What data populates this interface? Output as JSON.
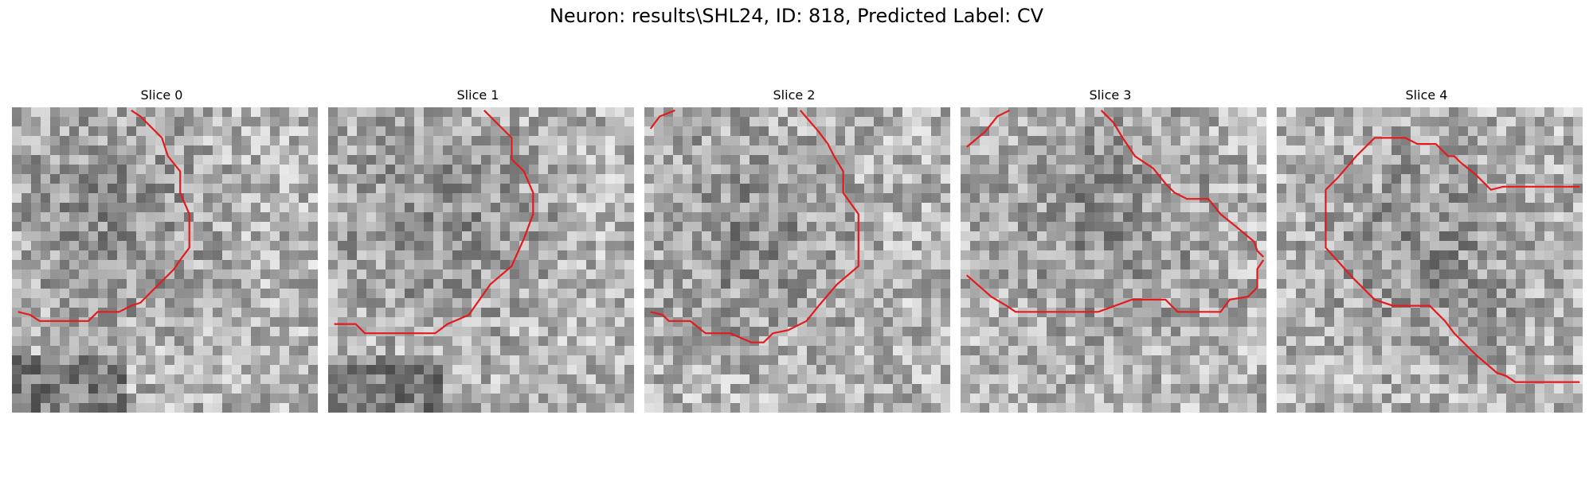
{
  "figure": {
    "title": "Neuron: results\\SHL24, ID: 818, Predicted Label: CV",
    "contour_color": "#e41a1c"
  },
  "panels": [
    {
      "label": "Slice 0",
      "contour": [
        [
          [
            0.02,
            0.67
          ],
          [
            0.06,
            0.68
          ],
          [
            0.09,
            0.7
          ],
          [
            0.18,
            0.7
          ],
          [
            0.25,
            0.7
          ],
          [
            0.28,
            0.67
          ],
          [
            0.35,
            0.67
          ],
          [
            0.39,
            0.65
          ],
          [
            0.42,
            0.64
          ],
          [
            0.46,
            0.6
          ],
          [
            0.53,
            0.53
          ],
          [
            0.55,
            0.5
          ],
          [
            0.58,
            0.46
          ],
          [
            0.58,
            0.35
          ],
          [
            0.55,
            0.28
          ],
          [
            0.55,
            0.21
          ],
          [
            0.51,
            0.16
          ],
          [
            0.49,
            0.1
          ],
          [
            0.42,
            0.03
          ],
          [
            0.39,
            0.01
          ]
        ]
      ]
    },
    {
      "label": "Slice 1",
      "contour": [
        [
          [
            0.02,
            0.71
          ],
          [
            0.09,
            0.71
          ],
          [
            0.12,
            0.74
          ],
          [
            0.23,
            0.74
          ],
          [
            0.35,
            0.74
          ],
          [
            0.39,
            0.71
          ],
          [
            0.46,
            0.68
          ],
          [
            0.53,
            0.58
          ],
          [
            0.6,
            0.52
          ],
          [
            0.64,
            0.43
          ],
          [
            0.67,
            0.35
          ],
          [
            0.67,
            0.28
          ],
          [
            0.64,
            0.21
          ],
          [
            0.6,
            0.17
          ],
          [
            0.6,
            0.1
          ],
          [
            0.54,
            0.04
          ],
          [
            0.51,
            0.01
          ]
        ]
      ]
    },
    {
      "label": "Slice 2",
      "contour": [
        [
          [
            0.02,
            0.67
          ],
          [
            0.06,
            0.68
          ],
          [
            0.08,
            0.7
          ],
          [
            0.15,
            0.7
          ],
          [
            0.2,
            0.74
          ],
          [
            0.28,
            0.74
          ],
          [
            0.35,
            0.77
          ],
          [
            0.39,
            0.77
          ],
          [
            0.42,
            0.74
          ],
          [
            0.47,
            0.73
          ],
          [
            0.53,
            0.7
          ],
          [
            0.57,
            0.65
          ],
          [
            0.63,
            0.58
          ],
          [
            0.7,
            0.52
          ],
          [
            0.7,
            0.45
          ],
          [
            0.7,
            0.35
          ],
          [
            0.65,
            0.28
          ],
          [
            0.65,
            0.21
          ],
          [
            0.62,
            0.16
          ],
          [
            0.6,
            0.12
          ],
          [
            0.57,
            0.08
          ],
          [
            0.51,
            0.01
          ]
        ],
        [
          [
            0.02,
            0.07
          ],
          [
            0.05,
            0.03
          ],
          [
            0.1,
            0.01
          ]
        ]
      ]
    },
    {
      "label": "Slice 3",
      "contour": [
        [
          [
            0.02,
            0.55
          ],
          [
            0.1,
            0.62
          ],
          [
            0.15,
            0.65
          ],
          [
            0.18,
            0.67
          ],
          [
            0.3,
            0.67
          ],
          [
            0.45,
            0.67
          ],
          [
            0.56,
            0.63
          ],
          [
            0.67,
            0.63
          ],
          [
            0.71,
            0.67
          ],
          [
            0.85,
            0.67
          ],
          [
            0.88,
            0.63
          ],
          [
            0.94,
            0.62
          ],
          [
            0.97,
            0.59
          ],
          [
            0.97,
            0.53
          ],
          [
            0.99,
            0.5
          ]
        ],
        [
          [
            0.99,
            0.49
          ],
          [
            0.97,
            0.47
          ],
          [
            0.96,
            0.44
          ],
          [
            0.9,
            0.39
          ],
          [
            0.85,
            0.35
          ],
          [
            0.81,
            0.3
          ],
          [
            0.74,
            0.3
          ],
          [
            0.7,
            0.28
          ],
          [
            0.67,
            0.25
          ],
          [
            0.63,
            0.2
          ],
          [
            0.57,
            0.16
          ],
          [
            0.53,
            0.1
          ],
          [
            0.5,
            0.05
          ],
          [
            0.46,
            0.01
          ]
        ],
        [
          [
            0.02,
            0.13
          ],
          [
            0.08,
            0.08
          ],
          [
            0.12,
            0.03
          ],
          [
            0.16,
            0.01
          ]
        ]
      ]
    },
    {
      "label": "Slice 4",
      "contour": [
        [
          [
            0.16,
            0.27
          ],
          [
            0.2,
            0.23
          ],
          [
            0.26,
            0.16
          ],
          [
            0.32,
            0.1
          ],
          [
            0.42,
            0.1
          ],
          [
            0.46,
            0.12
          ],
          [
            0.52,
            0.12
          ],
          [
            0.56,
            0.16
          ],
          [
            0.58,
            0.16
          ],
          [
            0.6,
            0.18
          ],
          [
            0.65,
            0.22
          ],
          [
            0.7,
            0.27
          ],
          [
            0.74,
            0.26
          ],
          [
            0.76,
            0.26
          ],
          [
            0.99,
            0.26
          ]
        ],
        [
          [
            0.16,
            0.27
          ],
          [
            0.16,
            0.46
          ],
          [
            0.25,
            0.56
          ],
          [
            0.32,
            0.63
          ],
          [
            0.38,
            0.65
          ],
          [
            0.5,
            0.65
          ],
          [
            0.55,
            0.7
          ],
          [
            0.58,
            0.74
          ],
          [
            0.65,
            0.81
          ],
          [
            0.72,
            0.87
          ],
          [
            0.75,
            0.88
          ],
          [
            0.78,
            0.9
          ],
          [
            0.99,
            0.9
          ]
        ]
      ]
    }
  ]
}
